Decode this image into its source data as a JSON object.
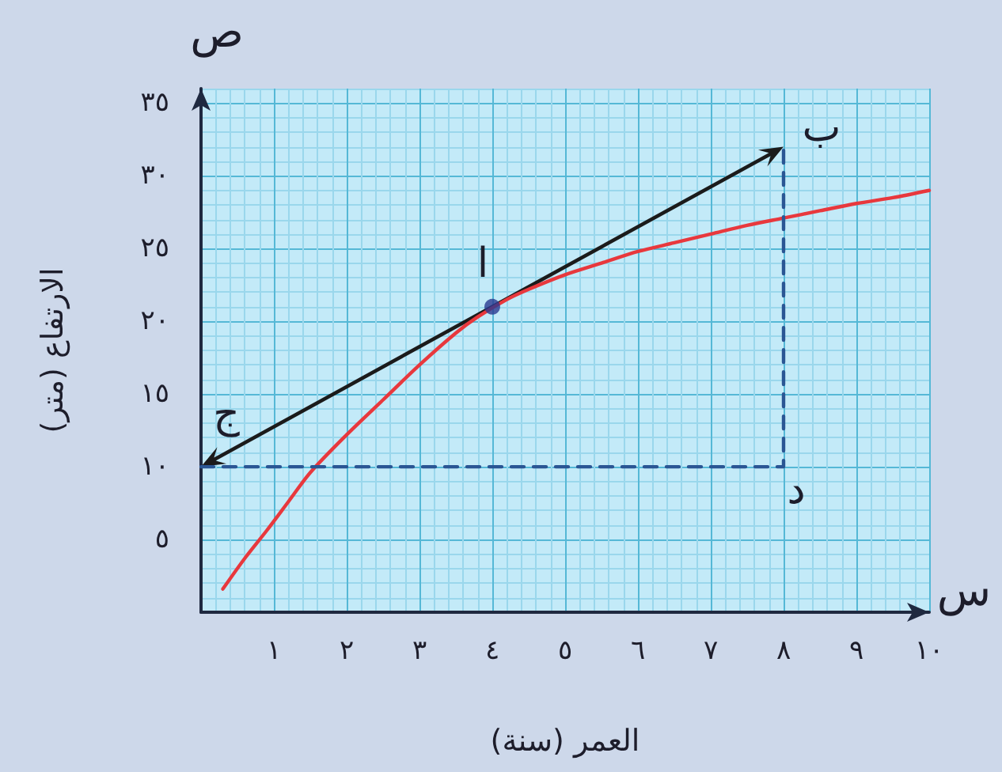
{
  "chart_data": {
    "type": "line",
    "xlabel": "العمر (سنة)",
    "ylabel": "الارتفاع (متر)",
    "annotations": [
      "ص",
      "س",
      {
        "text": "ا",
        "x": 4,
        "y": 21
      },
      {
        "text": "ب",
        "x": 8,
        "y": 32
      },
      {
        "text": "ج",
        "x": 0,
        "y": 10
      },
      {
        "text": "د",
        "x": 8,
        "y": 10
      }
    ],
    "xlim": [
      0,
      10
    ],
    "xticks": [
      {
        "value": 0,
        "label": null
      },
      {
        "value": 0.2,
        "label": null
      },
      {
        "value": 0.4,
        "label": null
      },
      {
        "value": 0.6,
        "label": null
      },
      {
        "value": 0.8,
        "label": null
      },
      {
        "value": 1,
        "label": "١"
      },
      {
        "value": 1.2,
        "label": null
      },
      {
        "value": 1.4,
        "label": null
      },
      {
        "value": 1.6,
        "label": null
      },
      {
        "value": 1.8,
        "label": null
      },
      {
        "value": 2,
        "label": "٢"
      },
      {
        "value": 2.2,
        "label": null
      },
      {
        "value": 2.4,
        "label": null
      },
      {
        "value": 2.6,
        "label": null
      },
      {
        "value": 2.8,
        "label": null
      },
      {
        "value": 3,
        "label": "٣"
      },
      {
        "value": 3.2,
        "label": null
      },
      {
        "value": 3.4,
        "label": null
      },
      {
        "value": 3.6,
        "label": null
      },
      {
        "value": 3.8,
        "label": null
      },
      {
        "value": 4,
        "label": "٤"
      },
      {
        "value": 4.2,
        "label": null
      },
      {
        "value": 4.4,
        "label": null
      },
      {
        "value": 4.6,
        "label": null
      },
      {
        "value": 4.8,
        "label": null
      },
      {
        "value": 5,
        "label": "٥"
      },
      {
        "value": 5.2,
        "label": null
      },
      {
        "value": 5.4,
        "label": null
      },
      {
        "value": 5.6,
        "label": null
      },
      {
        "value": 5.8,
        "label": null
      },
      {
        "value": 6,
        "label": "٦"
      },
      {
        "value": 6.2,
        "label": null
      },
      {
        "value": 6.4,
        "label": null
      },
      {
        "value": 6.6,
        "label": null
      },
      {
        "value": 6.8,
        "label": null
      },
      {
        "value": 7,
        "label": "٧"
      },
      {
        "value": 7.2,
        "label": null
      },
      {
        "value": 7.4,
        "label": null
      },
      {
        "value": 7.6,
        "label": null
      },
      {
        "value": 7.8,
        "label": null
      },
      {
        "value": 8,
        "label": "٨"
      },
      {
        "value": 8.2,
        "label": null
      },
      {
        "value": 8.4,
        "label": null
      },
      {
        "value": 8.6,
        "label": null
      },
      {
        "value": 8.8,
        "label": null
      },
      {
        "value": 9,
        "label": "٩"
      },
      {
        "value": 9.2,
        "label": null
      },
      {
        "value": 9.4,
        "label": null
      },
      {
        "value": 9.6,
        "label": null
      },
      {
        "value": 9.8,
        "label": null
      },
      {
        "value": 10,
        "label": "١٠"
      }
    ],
    "ylim": [
      0,
      36
    ],
    "yticks": [
      {
        "value": 0,
        "label": null
      },
      {
        "value": 1,
        "label": null
      },
      {
        "value": 2,
        "label": null
      },
      {
        "value": 3,
        "label": null
      },
      {
        "value": 4,
        "label": null
      },
      {
        "value": 5,
        "label": "٥"
      },
      {
        "value": 6,
        "label": null
      },
      {
        "value": 7,
        "label": null
      },
      {
        "value": 8,
        "label": null
      },
      {
        "value": 9,
        "label": null
      },
      {
        "value": 10,
        "label": "١٠"
      },
      {
        "value": 11,
        "label": null
      },
      {
        "value": 12,
        "label": null
      },
      {
        "value": 13,
        "label": null
      },
      {
        "value": 14,
        "label": null
      },
      {
        "value": 15,
        "label": "١٥"
      },
      {
        "value": 16,
        "label": null
      },
      {
        "value": 17,
        "label": null
      },
      {
        "value": 18,
        "label": null
      },
      {
        "value": 19,
        "label": null
      },
      {
        "value": 20,
        "label": "٢٠"
      },
      {
        "value": 21,
        "label": null
      },
      {
        "value": 22,
        "label": null
      },
      {
        "value": 23,
        "label": null
      },
      {
        "value": 24,
        "label": null
      },
      {
        "value": 25,
        "label": "٢٥"
      },
      {
        "value": 26,
        "label": null
      },
      {
        "value": 27,
        "label": null
      },
      {
        "value": 28,
        "label": null
      },
      {
        "value": 29,
        "label": null
      },
      {
        "value": 30,
        "label": "٣٠"
      },
      {
        "value": 31,
        "label": null
      },
      {
        "value": 32,
        "label": null
      },
      {
        "value": 33,
        "label": null
      },
      {
        "value": 34,
        "label": null
      },
      {
        "value": 35,
        "label": "٣٥"
      },
      {
        "value": 36,
        "label": null
      }
    ],
    "grid": true,
    "series": [
      {
        "color": "#e8383d",
        "x": [
          0.3,
          0.6,
          0.9,
          1.2,
          1.5,
          2,
          2.5,
          3,
          3.5,
          3.8,
          4.2,
          4.5,
          5,
          5.5,
          6,
          6.5,
          7,
          7.5,
          8,
          8.5,
          9,
          9.5,
          10
        ],
        "values": [
          1.6,
          3.7,
          5.6,
          7.6,
          9.6,
          12.2,
          14.6,
          17,
          19.2,
          20.3,
          21.5,
          22.2,
          23.2,
          24,
          24.8,
          25.4,
          26,
          26.6,
          27.1,
          27.6,
          28.1,
          28.5,
          29
        ]
      },
      {
        "color": "#2a5694",
        "line_style": "dashed",
        "x": [
          0,
          8,
          8
        ],
        "values": [
          10,
          10,
          32
        ]
      },
      {
        "type": "scatter",
        "color": "#2b3990",
        "marker": "circle",
        "x": [
          4
        ],
        "values": [
          21
        ]
      }
    ]
  }
}
